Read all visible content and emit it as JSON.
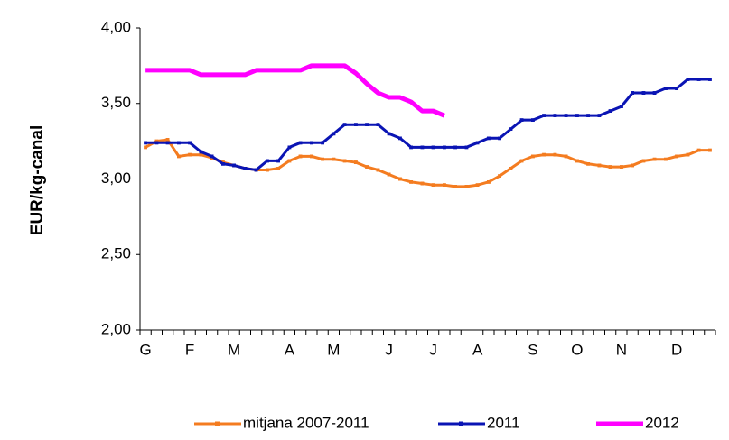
{
  "chart_data": {
    "type": "line",
    "y_label": "EUR/kg-canal",
    "categories": [
      "G",
      null,
      null,
      null,
      "F",
      null,
      null,
      null,
      "M",
      null,
      null,
      null,
      null,
      "A",
      null,
      null,
      null,
      "M",
      null,
      null,
      null,
      null,
      "J",
      null,
      null,
      null,
      "J",
      null,
      null,
      null,
      "A",
      null,
      null,
      null,
      null,
      "S",
      null,
      null,
      null,
      "O",
      null,
      null,
      null,
      "N",
      null,
      null,
      null,
      null,
      "D",
      null,
      null,
      null
    ],
    "ylim": [
      2,
      4
    ],
    "yticks": [
      {
        "value": 2,
        "label": "2,00"
      },
      {
        "value": 2.5,
        "label": "2,50"
      },
      {
        "value": 3,
        "label": "3,00"
      },
      {
        "value": 3.5,
        "label": "3,50"
      },
      {
        "value": 4,
        "label": "4,00"
      }
    ],
    "grid": false,
    "legend": "bottom",
    "series": [
      {
        "name": "mitjana 2007-2011",
        "color": "#f47c20",
        "marker": true,
        "values": [
          3.21,
          3.25,
          3.26,
          3.15,
          3.16,
          3.16,
          3.14,
          3.11,
          3.09,
          3.07,
          3.06,
          3.06,
          3.07,
          3.12,
          3.15,
          3.15,
          3.13,
          3.13,
          3.12,
          3.11,
          3.08,
          3.06,
          3.03,
          3.0,
          2.98,
          2.97,
          2.96,
          2.96,
          2.95,
          2.95,
          2.96,
          2.98,
          3.02,
          3.07,
          3.12,
          3.15,
          3.16,
          3.16,
          3.15,
          3.12,
          3.1,
          3.09,
          3.08,
          3.08,
          3.09,
          3.12,
          3.13,
          3.13,
          3.15,
          3.16,
          3.19,
          3.19
        ]
      },
      {
        "name": "2011",
        "color": "#0a14b4",
        "marker": true,
        "values": [
          3.24,
          3.24,
          3.24,
          3.24,
          3.24,
          3.18,
          3.15,
          3.1,
          3.09,
          3.07,
          3.06,
          3.12,
          3.12,
          3.21,
          3.24,
          3.24,
          3.24,
          3.3,
          3.36,
          3.36,
          3.36,
          3.36,
          3.3,
          3.27,
          3.21,
          3.21,
          3.21,
          3.21,
          3.21,
          3.21,
          3.24,
          3.27,
          3.27,
          3.33,
          3.39,
          3.39,
          3.42,
          3.42,
          3.42,
          3.42,
          3.42,
          3.42,
          3.45,
          3.48,
          3.57,
          3.57,
          3.57,
          3.6,
          3.6,
          3.66,
          3.66,
          3.66
        ]
      },
      {
        "name": "2012",
        "color": "#ff00ff",
        "marker": false,
        "values": [
          3.72,
          3.72,
          3.72,
          3.72,
          3.72,
          3.69,
          3.69,
          3.69,
          3.69,
          3.69,
          3.72,
          3.72,
          3.72,
          3.72,
          3.72,
          3.75,
          3.75,
          3.75,
          3.75,
          3.7,
          3.63,
          3.57,
          3.54,
          3.54,
          3.51,
          3.45,
          3.45,
          3.42,
          null,
          null,
          null,
          null,
          null,
          null,
          null,
          null,
          null,
          null,
          null,
          null,
          null,
          null,
          null,
          null,
          null,
          null,
          null,
          null,
          null,
          null,
          null,
          null
        ]
      }
    ]
  }
}
